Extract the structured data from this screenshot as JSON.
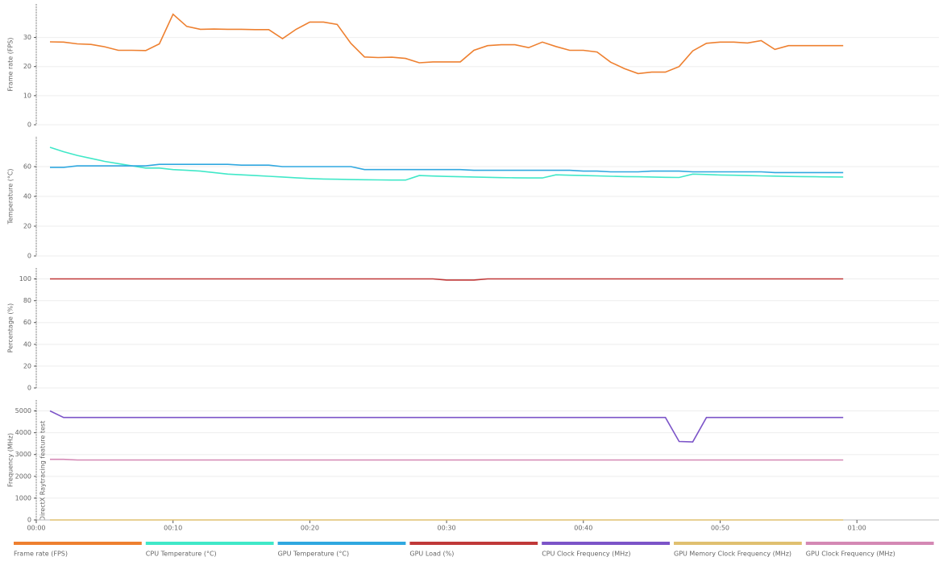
{
  "chart_data": [
    {
      "type": "line",
      "y_label": "Frame rate (FPS)",
      "ylim": [
        0,
        41.5
      ],
      "yticks": [
        0,
        10,
        20,
        30
      ],
      "xlim": [
        0,
        66
      ],
      "x": [
        1,
        2,
        3,
        4,
        5,
        6,
        7,
        8,
        9,
        10,
        11,
        12,
        13,
        14,
        15,
        16,
        17,
        18,
        19,
        20,
        21,
        22,
        23,
        24,
        25,
        26,
        27,
        28,
        29,
        30,
        31,
        32,
        33,
        34,
        35,
        36,
        37,
        38,
        39,
        40,
        41,
        42,
        43,
        44,
        45,
        46,
        47,
        48,
        49,
        50,
        51,
        52,
        53,
        54,
        55,
        56,
        57,
        58,
        59
      ],
      "series": [
        {
          "name": "Frame rate (FPS)",
          "color": "#ee8030",
          "values": [
            28.5,
            28.4,
            27.8,
            27.6,
            26.8,
            25.6,
            25.6,
            25.5,
            27.8,
            38,
            33.8,
            32.8,
            32.9,
            32.8,
            32.8,
            32.7,
            32.7,
            29.6,
            32.8,
            35.3,
            35.3,
            34.5,
            28,
            23.3,
            23.1,
            23.2,
            22.8,
            21.3,
            21.6,
            21.6,
            21.6,
            25.6,
            27.2,
            27.5,
            27.5,
            26.5,
            28.4,
            26.9,
            25.6,
            25.6,
            25,
            21.5,
            19.3,
            17.6,
            18.1,
            18.1,
            20,
            25.4,
            28,
            28.4,
            28.4,
            28.1,
            28.9,
            25.9,
            27.2,
            27.2,
            27.2,
            27.2,
            27.2
          ]
        }
      ]
    },
    {
      "type": "line",
      "y_label": "Temperature (°C)",
      "ylim": [
        0,
        80
      ],
      "yticks": [
        0,
        20,
        40,
        60
      ],
      "xlim": [
        0,
        66
      ],
      "x": [
        1,
        2,
        3,
        4,
        5,
        6,
        7,
        8,
        9,
        10,
        11,
        12,
        13,
        14,
        15,
        16,
        17,
        18,
        19,
        20,
        21,
        22,
        23,
        24,
        25,
        26,
        27,
        28,
        29,
        30,
        31,
        32,
        33,
        34,
        35,
        36,
        37,
        38,
        39,
        40,
        41,
        42,
        43,
        44,
        45,
        46,
        47,
        48,
        49,
        50,
        51,
        52,
        53,
        54,
        55,
        56,
        57,
        58,
        59
      ],
      "series": [
        {
          "name": "CPU Temperature (°C)",
          "color": "#40e8c8",
          "values": [
            73,
            70,
            67.5,
            65.5,
            63.5,
            62,
            60.5,
            59,
            59,
            58,
            57.5,
            57,
            56,
            55,
            54.5,
            54,
            53.5,
            53,
            52.5,
            52,
            51.7,
            51.5,
            51.3,
            51.2,
            51.1,
            51,
            51,
            54,
            53.7,
            53.4,
            53.2,
            53,
            52.8,
            52.6,
            52.5,
            52.4,
            52.4,
            54.5,
            54.2,
            54,
            53.8,
            53.5,
            53.3,
            53.2,
            53,
            52.8,
            52.7,
            55,
            54.7,
            54.4,
            54.2,
            54,
            53.8,
            53.6,
            53.4,
            53.3,
            53.2,
            53.1,
            53
          ]
        },
        {
          "name": "GPU Temperature (°C)",
          "color": "#30a8e0",
          "values": [
            59.5,
            59.5,
            60.5,
            60.5,
            60.5,
            60.5,
            60.5,
            60.5,
            61.5,
            61.5,
            61.5,
            61.5,
            61.5,
            61.5,
            61,
            61,
            61,
            60,
            60,
            60,
            60,
            60,
            60,
            58,
            58,
            58,
            58,
            58,
            58,
            58,
            58,
            57.5,
            57.5,
            57.5,
            57.5,
            57.5,
            57.5,
            57.5,
            57.5,
            57,
            57,
            56.5,
            56.5,
            56.5,
            57,
            57,
            57,
            56.5,
            56.5,
            56.5,
            56.5,
            56.5,
            56.5,
            56,
            56,
            56,
            56,
            56,
            56
          ]
        }
      ]
    },
    {
      "type": "line",
      "y_label": "Percentage (%)",
      "ylim": [
        0,
        110
      ],
      "yticks": [
        0,
        20,
        40,
        60,
        80,
        100
      ],
      "xlim": [
        0,
        66
      ],
      "x": [
        1,
        2,
        3,
        4,
        5,
        6,
        7,
        8,
        9,
        10,
        11,
        12,
        13,
        14,
        15,
        16,
        17,
        18,
        19,
        20,
        21,
        22,
        23,
        24,
        25,
        26,
        27,
        28,
        29,
        30,
        31,
        32,
        33,
        34,
        35,
        36,
        37,
        38,
        39,
        40,
        41,
        42,
        43,
        44,
        45,
        46,
        47,
        48,
        49,
        50,
        51,
        52,
        53,
        54,
        55,
        56,
        57,
        58,
        59
      ],
      "series": [
        {
          "name": "GPU Load (%)",
          "color": "#c03838",
          "values": [
            100,
            100,
            100,
            100,
            100,
            100,
            100,
            100,
            100,
            100,
            100,
            100,
            100,
            100,
            100,
            100,
            100,
            100,
            100,
            100,
            100,
            100,
            100,
            100,
            100,
            100,
            100,
            100,
            100,
            99,
            99,
            99,
            100,
            100,
            100,
            100,
            100,
            100,
            100,
            100,
            100,
            100,
            100,
            100,
            100,
            100,
            100,
            100,
            100,
            100,
            100,
            100,
            100,
            100,
            100,
            100,
            100,
            100,
            100
          ]
        }
      ]
    },
    {
      "type": "line",
      "y_label": "Frequency (MHz)",
      "annotation": "DirectX Raytracing feature test",
      "ylim": [
        0,
        5500
      ],
      "yticks": [
        0,
        1000,
        2000,
        3000,
        4000,
        5000
      ],
      "xlim": [
        0,
        66
      ],
      "xticks": [
        {
          "value": 0,
          "label": "00:00"
        },
        {
          "value": 10,
          "label": "00:10"
        },
        {
          "value": 20,
          "label": "00:20"
        },
        {
          "value": 30,
          "label": "00:30"
        },
        {
          "value": 40,
          "label": "00:40"
        },
        {
          "value": 50,
          "label": "00:50"
        },
        {
          "value": 60,
          "label": "01:00"
        }
      ],
      "x": [
        1,
        2,
        3,
        4,
        5,
        6,
        7,
        8,
        9,
        10,
        11,
        12,
        13,
        14,
        15,
        16,
        17,
        18,
        19,
        20,
        21,
        22,
        23,
        24,
        25,
        26,
        27,
        28,
        29,
        30,
        31,
        32,
        33,
        34,
        35,
        36,
        37,
        38,
        39,
        40,
        41,
        42,
        43,
        44,
        45,
        46,
        47,
        48,
        49,
        50,
        51,
        52,
        53,
        54,
        55,
        56,
        57,
        58,
        59
      ],
      "series": [
        {
          "name": "CPU Clock Frequency (MHz)",
          "color": "#7c54c8",
          "values": [
            5000,
            4700,
            4700,
            4700,
            4700,
            4700,
            4700,
            4700,
            4700,
            4700,
            4700,
            4700,
            4700,
            4700,
            4700,
            4700,
            4700,
            4700,
            4700,
            4700,
            4700,
            4700,
            4700,
            4700,
            4700,
            4700,
            4700,
            4700,
            4700,
            4700,
            4700,
            4700,
            4700,
            4700,
            4700,
            4700,
            4700,
            4700,
            4700,
            4700,
            4700,
            4700,
            4700,
            4700,
            4700,
            4700,
            3600,
            3580,
            4700,
            4700,
            4700,
            4700,
            4700,
            4700,
            4700,
            4700,
            4700,
            4700,
            4700
          ]
        },
        {
          "name": "GPU Memory Clock Frequency (MHz)",
          "color": "#e0c070",
          "values": [
            0,
            0,
            0,
            0,
            0,
            0,
            0,
            0,
            0,
            0,
            0,
            0,
            0,
            0,
            0,
            0,
            0,
            0,
            0,
            0,
            0,
            0,
            0,
            0,
            0,
            0,
            0,
            0,
            0,
            0,
            0,
            0,
            0,
            0,
            0,
            0,
            0,
            0,
            0,
            0,
            0,
            0,
            0,
            0,
            0,
            0,
            0,
            0,
            0,
            0,
            0,
            0,
            0,
            0,
            0,
            0,
            0,
            0,
            0
          ]
        },
        {
          "name": "GPU Clock Frequency (MHz)",
          "color": "#d488b4",
          "values": [
            2780,
            2780,
            2750,
            2750,
            2750,
            2750,
            2750,
            2750,
            2750,
            2750,
            2750,
            2750,
            2750,
            2750,
            2750,
            2750,
            2750,
            2750,
            2750,
            2750,
            2750,
            2750,
            2750,
            2750,
            2750,
            2750,
            2750,
            2750,
            2750,
            2750,
            2750,
            2750,
            2750,
            2750,
            2750,
            2750,
            2750,
            2750,
            2750,
            2750,
            2750,
            2750,
            2750,
            2750,
            2750,
            2750,
            2750,
            2750,
            2750,
            2750,
            2750,
            2750,
            2750,
            2750,
            2750,
            2750,
            2750,
            2750,
            2750
          ]
        }
      ]
    }
  ]
}
